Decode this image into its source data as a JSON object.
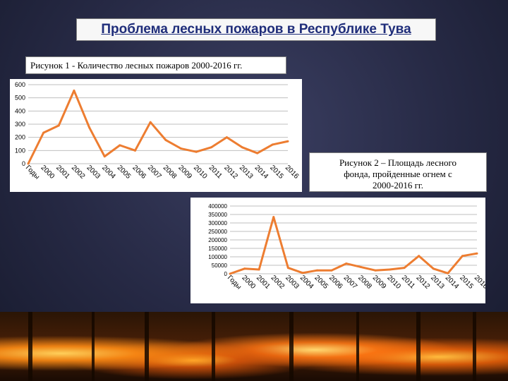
{
  "title": "Проблема лесных пожаров в Республике Тува",
  "figure1": {
    "caption": "Рисунок 1 - Количество лесных пожаров 2000-2016 гг."
  },
  "figure2": {
    "caption_line1": "Рисунок 2 – Площадь лесного",
    "caption_line2": "фонда, пройденные огнем с",
    "caption_line3": "2000-2016 гг."
  },
  "colors": {
    "line": "#ed7d31",
    "grid": "#bfbfbf",
    "title_text": "#1f2d7a"
  },
  "chart_data": [
    {
      "type": "line",
      "categories": [
        "Годы",
        "2000",
        "2001",
        "2002",
        "2003",
        "2004",
        "2005",
        "2006",
        "2007",
        "2008",
        "2009",
        "2010",
        "2011",
        "2012",
        "2013",
        "2014",
        "2015",
        "2016"
      ],
      "values": [
        0,
        235,
        290,
        555,
        275,
        55,
        140,
        100,
        315,
        180,
        115,
        90,
        125,
        200,
        125,
        80,
        145,
        170
      ],
      "yticks": [
        "0",
        "100",
        "200",
        "300",
        "400",
        "500",
        "600"
      ],
      "ylim": [
        0,
        600
      ],
      "grid": true
    },
    {
      "type": "line",
      "categories": [
        "Годы",
        "2000",
        "2001",
        "2002",
        "2003",
        "2004",
        "2005",
        "2006",
        "2007",
        "2008",
        "2009",
        "2010",
        "2011",
        "2012",
        "2013",
        "2014",
        "2015",
        "2016"
      ],
      "values": [
        0,
        30000,
        25000,
        335000,
        35000,
        5000,
        20000,
        20000,
        60000,
        40000,
        20000,
        25000,
        35000,
        105000,
        30000,
        3000,
        105000,
        120000
      ],
      "yticks": [
        "0",
        "50000",
        "100000",
        "150000",
        "200000",
        "250000",
        "300000",
        "350000",
        "400000"
      ],
      "ylim": [
        0,
        400000
      ],
      "grid": true
    }
  ]
}
